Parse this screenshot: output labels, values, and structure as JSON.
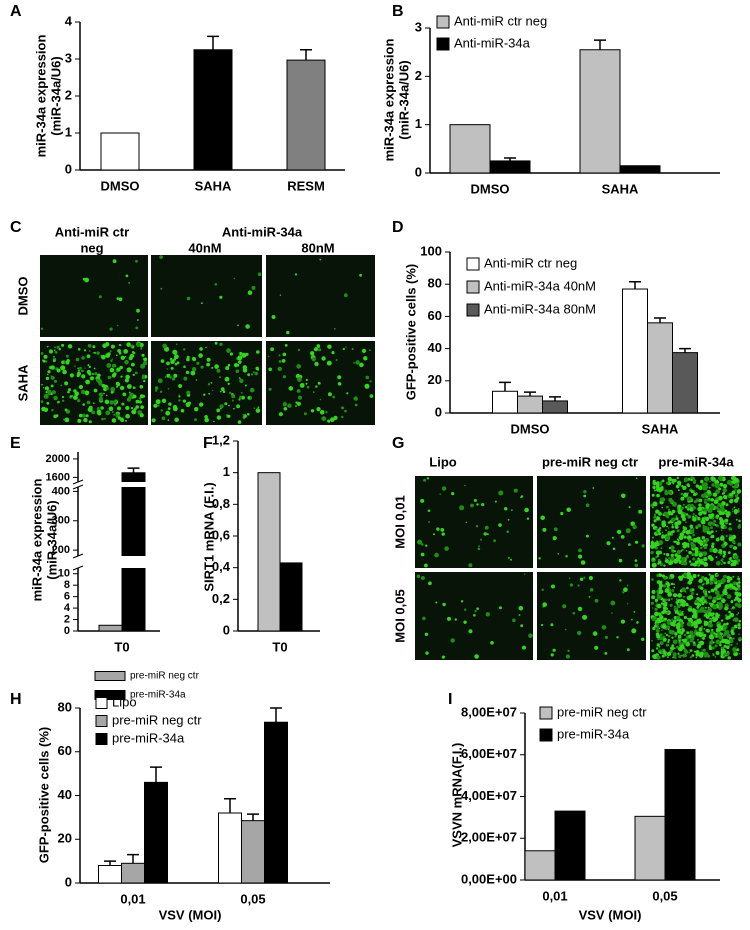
{
  "chart_data": [
    {
      "type": "bar",
      "panel": "A",
      "ylabel": [
        "miR-34a expression",
        "(miR-34a/U6)"
      ],
      "categories": [
        "DMSO",
        "SAHA",
        "RESM"
      ],
      "series": [
        {
          "colors": [
            "#ffffff",
            "#000000",
            "#808080"
          ],
          "values": [
            1,
            3.25,
            2.97
          ],
          "errors": [
            null,
            0.36,
            0.28
          ]
        }
      ],
      "ylim": [
        0,
        4
      ],
      "yticks": [
        0,
        1,
        2,
        3,
        4
      ]
    },
    {
      "type": "bar",
      "panel": "B",
      "ylabel": [
        "miR-34a expression",
        "(miR-34a/U6)"
      ],
      "categories": [
        "DMSO",
        "SAHA"
      ],
      "series": [
        {
          "name": "Anti-miR ctr neg",
          "color": "#c0c0c0",
          "values": [
            1,
            2.55
          ],
          "errors": [
            null,
            0.2
          ]
        },
        {
          "name": "Anti-miR-34a",
          "color": "#000000",
          "values": [
            0.25,
            0.15
          ],
          "errors": [
            0.06,
            null
          ]
        }
      ],
      "ylim": [
        0,
        3
      ],
      "yticks": [
        0,
        1,
        2,
        3
      ]
    },
    {
      "type": "bar",
      "panel": "D",
      "ylabel": [
        "GFP-positive cells (%)"
      ],
      "categories": [
        "DMSO",
        "SAHA"
      ],
      "series": [
        {
          "name": "Anti-miR ctr neg",
          "color": "#ffffff",
          "values": [
            13.5,
            77
          ],
          "errors": [
            5.5,
            4.5
          ]
        },
        {
          "name": "Anti-miR-34a 40nM",
          "color": "#c0c0c0",
          "values": [
            10.5,
            56
          ],
          "errors": [
            2.5,
            3
          ]
        },
        {
          "name": "Anti-miR-34a 80nM",
          "color": "#595959",
          "values": [
            7.5,
            37.5
          ],
          "errors": [
            2.5,
            2.5
          ]
        }
      ],
      "ylim": [
        0,
        100
      ],
      "yticks": [
        0,
        20,
        40,
        60,
        80,
        100
      ]
    },
    {
      "type": "broken-bar",
      "panel": "E",
      "ylabel": [
        "miR-34a expression",
        "(miR-34a/U6)"
      ],
      "categories": [
        "T0"
      ],
      "series": [
        {
          "name": "pre-miR neg ctr",
          "color": "#a6a6a6",
          "values": [
            1
          ],
          "errors": [
            null
          ]
        },
        {
          "name": "pre-miR-34a",
          "color": "#000000",
          "values": [
            1700
          ],
          "errors": [
            100
          ]
        }
      ],
      "segments": [
        {
          "ylim": [
            0,
            11
          ],
          "yticks": [
            0,
            2,
            4,
            6,
            8,
            10
          ]
        },
        {
          "ylim": [
            180,
            415
          ],
          "yticks": [
            200,
            300,
            400
          ]
        },
        {
          "ylim": [
            1500,
            2150
          ],
          "yticks": [
            1600,
            2000
          ]
        }
      ]
    },
    {
      "type": "bar",
      "panel": "F",
      "ylabel": [
        "SIRT1 mRNA (F.I.)"
      ],
      "categories": [
        "T0"
      ],
      "series": [
        {
          "color": "#c0c0c0",
          "values": [
            1
          ],
          "errors": [
            null
          ]
        },
        {
          "color": "#000000",
          "values": [
            0.43
          ],
          "errors": [
            null
          ]
        }
      ],
      "ylim": [
        0,
        1.2
      ],
      "yticks": [
        0,
        {
          "value": 0.2,
          "label": "0,2"
        },
        {
          "value": 0.4,
          "label": "0,4"
        },
        {
          "value": 0.6,
          "label": "0,6"
        },
        {
          "value": 0.8,
          "label": "0,8"
        },
        1,
        {
          "value": 1.2,
          "label": "1,2"
        }
      ]
    },
    {
      "type": "bar",
      "panel": "H",
      "ylabel": [
        "GFP-positive cells (%)"
      ],
      "xlabel": "VSV (MOI)",
      "categories": [
        "0,01",
        "0,05"
      ],
      "series": [
        {
          "name": "Lipo",
          "color": "#ffffff",
          "values": [
            8,
            32
          ],
          "errors": [
            2,
            6.5
          ]
        },
        {
          "name": "pre-miR neg ctr",
          "color": "#a6a6a6",
          "values": [
            9,
            28.5
          ],
          "errors": [
            4,
            3
          ]
        },
        {
          "name": "pre-miR-34a",
          "color": "#000000",
          "values": [
            46,
            73.5
          ],
          "errors": [
            7,
            6.5
          ]
        }
      ],
      "ylim": [
        0,
        80
      ],
      "yticks": [
        0,
        20,
        40,
        60,
        80
      ]
    },
    {
      "type": "bar",
      "panel": "I",
      "ylabel": [
        "VSVN mRNA(F.I.)"
      ],
      "xlabel": "VSV (MOI)",
      "categories": [
        "0,01",
        "0,05"
      ],
      "series": [
        {
          "name": "pre-miR neg ctr",
          "color": "#c0c0c0",
          "values": [
            14000000,
            30500000
          ],
          "errors": [
            null,
            null
          ]
        },
        {
          "name": "pre-miR-34a",
          "color": "#000000",
          "values": [
            33000000,
            62500000
          ],
          "errors": [
            null,
            null
          ]
        }
      ],
      "ylim": [
        0,
        80000000
      ],
      "yticks": [
        {
          "value": 0,
          "label": "0,00E+00"
        },
        {
          "value": 20000000,
          "label": "2,00E+07"
        },
        {
          "value": 40000000,
          "label": "4,00E+07"
        },
        {
          "value": 60000000,
          "label": "6,00E+07"
        },
        {
          "value": 80000000,
          "label": "8,00E+07"
        }
      ]
    }
  ],
  "image_panels": [
    {
      "panel": "C",
      "top_labels": [
        "Anti-miR ctr",
        "neg",
        "Anti-miR-34a",
        "40nM",
        "80nM"
      ],
      "row_labels": [
        "DMSO",
        "SAHA"
      ]
    },
    {
      "panel": "G",
      "top_labels": [
        "Lipo",
        "pre-miR neg ctr",
        "pre-miR-34a"
      ],
      "row_labels": [
        "MOI 0,01",
        "MOI 0,05"
      ]
    }
  ]
}
